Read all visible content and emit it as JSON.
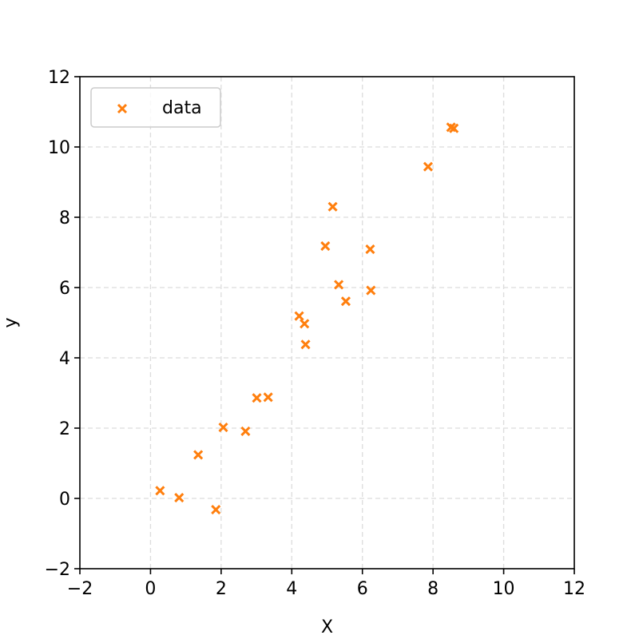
{
  "chart_data": {
    "type": "scatter",
    "title": "",
    "xlabel": "X",
    "ylabel": "y",
    "xlim": [
      -2,
      12
    ],
    "ylim": [
      -2,
      12
    ],
    "xticks": [
      -2,
      0,
      2,
      4,
      6,
      8,
      10,
      12
    ],
    "yticks": [
      -2,
      0,
      2,
      4,
      6,
      8,
      10,
      12
    ],
    "xtick_labels": [
      "−2",
      "0",
      "2",
      "4",
      "6",
      "8",
      "10",
      "12"
    ],
    "ytick_labels": [
      "−2",
      "0",
      "2",
      "4",
      "6",
      "8",
      "10",
      "12"
    ],
    "grid": true,
    "grid_style": "dashed",
    "legend_position": "top-left",
    "marker": "x",
    "series": [
      {
        "name": "data",
        "color": "#ff7f0e",
        "points": [
          {
            "x": 0.27,
            "y": 0.22
          },
          {
            "x": 0.81,
            "y": 0.02
          },
          {
            "x": 1.35,
            "y": 1.24
          },
          {
            "x": 1.85,
            "y": -0.32
          },
          {
            "x": 2.06,
            "y": 2.02
          },
          {
            "x": 2.69,
            "y": 1.91
          },
          {
            "x": 3.01,
            "y": 2.86
          },
          {
            "x": 3.33,
            "y": 2.88
          },
          {
            "x": 4.21,
            "y": 5.19
          },
          {
            "x": 4.36,
            "y": 4.97
          },
          {
            "x": 4.39,
            "y": 4.38
          },
          {
            "x": 4.95,
            "y": 7.18
          },
          {
            "x": 5.16,
            "y": 8.3
          },
          {
            "x": 5.33,
            "y": 6.08
          },
          {
            "x": 5.53,
            "y": 5.61
          },
          {
            "x": 6.22,
            "y": 7.09
          },
          {
            "x": 6.24,
            "y": 5.92
          },
          {
            "x": 7.86,
            "y": 9.44
          },
          {
            "x": 8.51,
            "y": 10.56
          },
          {
            "x": 8.59,
            "y": 10.53
          }
        ]
      }
    ]
  }
}
